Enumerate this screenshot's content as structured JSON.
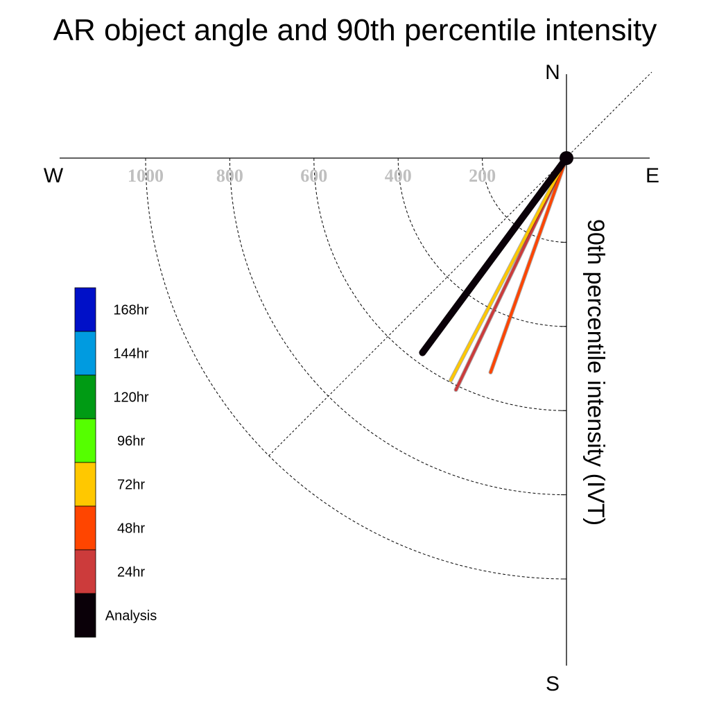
{
  "chart_data": {
    "type": "polar-line",
    "title": "AR object angle and 90th percentile intensity",
    "ylabel": "90th percentile intensity (IVT)",
    "compass": {
      "north": "N",
      "south": "S",
      "east": "E",
      "west": "W"
    },
    "radial_ticks": [
      200,
      400,
      600,
      800,
      1000
    ],
    "radial_tick_labels": [
      "200",
      "400",
      "600",
      "800",
      "1000"
    ],
    "rmax": 1000,
    "grid": true,
    "series": [
      {
        "name": "24hr",
        "color": "#cc3b3b",
        "angle_from_south_deg": 25.5,
        "intensity": 610
      },
      {
        "name": "48hr",
        "color": "#ff4500",
        "angle_from_south_deg": 19.5,
        "intensity": 540
      },
      {
        "name": "72hr",
        "color": "#ffc800",
        "angle_from_south_deg": 27.5,
        "intensity": 595
      },
      {
        "name": "Analysis",
        "color": "#0a0008",
        "angle_from_south_deg": 36.5,
        "intensity": 575
      }
    ],
    "legend": {
      "position": "left",
      "items": [
        {
          "label": "168hr",
          "color": "#0010c8"
        },
        {
          "label": "144hr",
          "color": "#009be0"
        },
        {
          "label": "120hr",
          "color": "#009b14"
        },
        {
          "label": "96hr",
          "color": "#55ff00"
        },
        {
          "label": "72hr",
          "color": "#ffc800"
        },
        {
          "label": "48hr",
          "color": "#ff4500"
        },
        {
          "label": "24hr",
          "color": "#cc3b3b"
        },
        {
          "label": "Analysis",
          "color": "#0a0008"
        }
      ]
    }
  }
}
